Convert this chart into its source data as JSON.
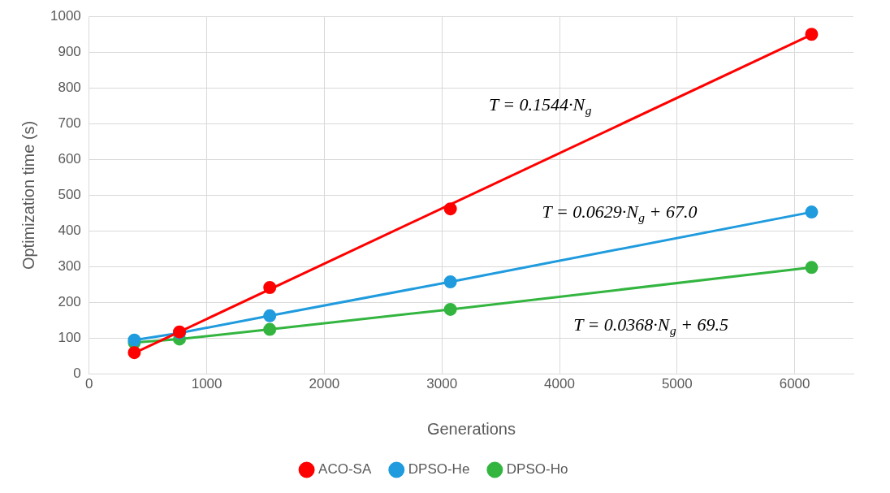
{
  "chart_data": {
    "type": "scatter",
    "xlabel": "Generations",
    "ylabel": "Optimization time (s)",
    "xlim": [
      0,
      6500
    ],
    "xticks": [
      0,
      1000,
      2000,
      3000,
      4000,
      5000,
      6000
    ],
    "ylim": [
      0,
      1000
    ],
    "yticks": [
      0,
      100,
      200,
      300,
      400,
      500,
      600,
      700,
      800,
      900,
      1000
    ],
    "grid": true,
    "legend": "bottom",
    "marker": "circle",
    "series": [
      {
        "type": "line",
        "color": "#ff0000",
        "x": [
          384,
          6144
        ],
        "values": [
          59,
          949
        ],
        "marker": "none"
      },
      {
        "name": "ACO-SA",
        "color": "#ff0000",
        "x": [
          384,
          768,
          1536,
          3072,
          6144
        ],
        "values": [
          60,
          118,
          242,
          462,
          950
        ]
      },
      {
        "type": "line",
        "name": "DPSO-He",
        "color": "#1f9bde",
        "x": [
          384,
          768,
          1536,
          3072,
          6144
        ],
        "values": [
          95,
          115,
          163,
          258,
          453
        ]
      },
      {
        "type": "line",
        "name": "DPSO-Ho",
        "color": "#33b540",
        "x": [
          384,
          768,
          1536,
          3072,
          6144
        ],
        "values": [
          88,
          98,
          125,
          181,
          298
        ]
      }
    ],
    "annotations": [
      "T = 0.1544·N$_{g}$",
      "T = 0.0629·N$_{g}$ + 67.0",
      "T = 0.0368·N$_{g}$ + 69.5"
    ]
  }
}
